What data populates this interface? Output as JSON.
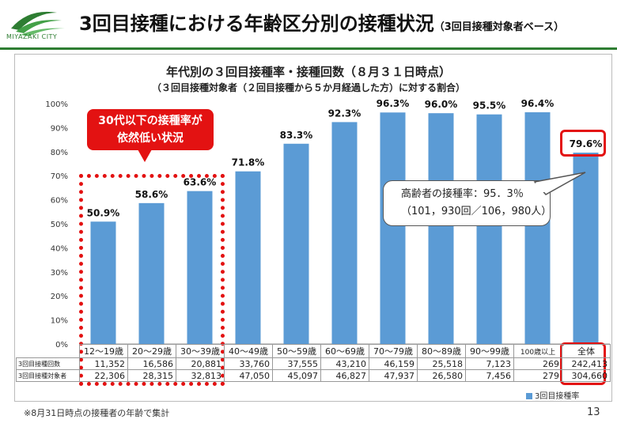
{
  "header": {
    "logo_text": "MIYAZAKI CITY",
    "title": "3回目接種における年齢区分別の接種状況",
    "title_sub": "（3回目接種対象者ベース）"
  },
  "colors": {
    "bar": "#5b9bd5",
    "accent": "#e31212",
    "brand": "#2e7d32"
  },
  "chart_data": {
    "type": "bar",
    "title": "年代別の３回目接種率・接種回数（８月３１日時点）",
    "subtitle": "（３回目接種対象者（２回目接種から５か月経過した方）に対する割合）",
    "categories": [
      "12～19歳",
      "20～29歳",
      "30～39歳",
      "40～49歳",
      "50～59歳",
      "60～69歳",
      "70～79歳",
      "80～89歳",
      "90～99歳",
      "100歳以上",
      "全体"
    ],
    "series": [
      {
        "name": "3回目接種率",
        "values": [
          50.9,
          58.6,
          63.6,
          71.8,
          83.3,
          92.3,
          96.3,
          96.0,
          95.5,
          96.4,
          79.6
        ]
      }
    ],
    "data_labels": [
      "50.9%",
      "58.6%",
      "63.6%",
      "71.8%",
      "83.3%",
      "92.3%",
      "96.3%",
      "96.0%",
      "95.5%",
      "96.4%",
      "79.6%"
    ],
    "y_ticks": [
      "0%",
      "10%",
      "20%",
      "30%",
      "40%",
      "50%",
      "60%",
      "70%",
      "80%",
      "90%",
      "100%"
    ],
    "ylim": [
      0,
      100
    ],
    "legend_position": "bottom-right"
  },
  "table": {
    "row_labels": [
      "3回目接種回数",
      "3回目接種対象者"
    ],
    "rows": [
      [
        "11,352",
        "16,586",
        "20,881",
        "33,760",
        "37,555",
        "43,210",
        "46,159",
        "25,518",
        "7,123",
        "269",
        "242,413"
      ],
      [
        "22,306",
        "28,315",
        "32,813",
        "47,050",
        "45,097",
        "46,827",
        "47,937",
        "26,580",
        "7,456",
        "279",
        "304,660"
      ]
    ]
  },
  "callouts": {
    "red_line1": "30代以下の接種率が",
    "red_line2": "依然低い状況",
    "elderly_line1": "高齢者の接種率：95．3％",
    "elderly_line2": "（101，930回／106，980人）"
  },
  "legend_label": "3回目接種率",
  "footnote": "※8月31日時点の接種者の年齢で集計",
  "page_number": "13"
}
